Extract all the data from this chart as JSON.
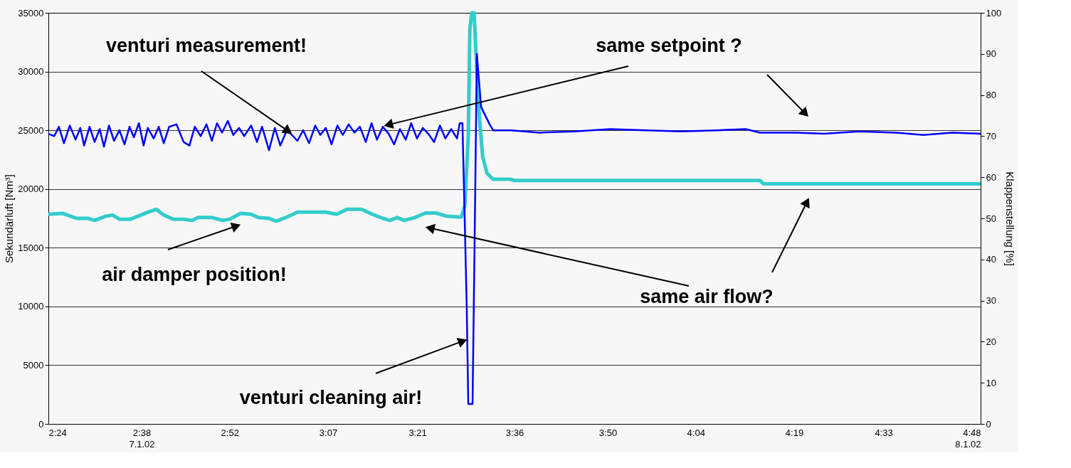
{
  "chart_data": {
    "type": "line",
    "ylabel": "Sekundärluft [Nm³]",
    "y2label": "Klappenstellung  [%]",
    "xlim": [
      2.4,
      4.8
    ],
    "xticks": [
      {
        "value": 2.4,
        "label": "2:24"
      },
      {
        "value": 2.64,
        "label": "2:38\n7.1.02"
      },
      {
        "value": 2.8667,
        "label": "2:52"
      },
      {
        "value": 3.12,
        "label": "3:07"
      },
      {
        "value": 3.35,
        "label": "3:21"
      },
      {
        "value": 3.6,
        "label": "3:36"
      },
      {
        "value": 3.84,
        "label": "3:50"
      },
      {
        "value": 4.0667,
        "label": "4:04"
      },
      {
        "value": 4.32,
        "label": "4:19"
      },
      {
        "value": 4.55,
        "label": "4:33"
      },
      {
        "value": 4.8,
        "label": "4:48\n8.1.02"
      }
    ],
    "ylim": [
      0,
      35000
    ],
    "yticks": [
      0,
      5000,
      10000,
      15000,
      20000,
      25000,
      30000,
      35000
    ],
    "y2lim": [
      0,
      100
    ],
    "y2ticks": [
      0,
      10,
      20,
      30,
      40,
      50,
      60,
      70,
      80,
      90,
      100
    ],
    "grid": "y",
    "marker": "none",
    "line_style": "solid",
    "series": [
      {
        "color": "#0000ff",
        "x": [
          2.4,
          2.415,
          2.427,
          2.44,
          2.455,
          2.47,
          2.482,
          2.492,
          2.506,
          2.519,
          2.532,
          2.543,
          2.556,
          2.569,
          2.583,
          2.596,
          2.609,
          2.62,
          2.633,
          2.645,
          2.656,
          2.671,
          2.684,
          2.697,
          2.711,
          2.73,
          2.748,
          2.763,
          2.777,
          2.792,
          2.807,
          2.821,
          2.834,
          2.847,
          2.862,
          2.876,
          2.891,
          2.904,
          2.922,
          2.937,
          2.95,
          2.968,
          2.983,
          2.997,
          3.014,
          3.027,
          3.041,
          3.056,
          3.071,
          3.087,
          3.1,
          3.114,
          3.129,
          3.144,
          3.158,
          3.173,
          3.188,
          3.202,
          3.217,
          3.232,
          3.246,
          3.261,
          3.276,
          3.29,
          3.305,
          3.32,
          3.334,
          3.349,
          3.364,
          3.378,
          3.393,
          3.408,
          3.422,
          3.437,
          3.452,
          3.459,
          3.466,
          3.477,
          3.481,
          3.492,
          3.499,
          3.503,
          3.514,
          3.521,
          3.536,
          3.545,
          3.591,
          3.664,
          3.756,
          3.847,
          3.939,
          4.03,
          4.122,
          4.195,
          4.232,
          4.324,
          4.397,
          4.488,
          4.58,
          4.653,
          4.727,
          4.8
        ],
        "values": [
          24700,
          24500,
          25300,
          23900,
          25400,
          24200,
          25200,
          23700,
          25300,
          24000,
          25100,
          23600,
          25400,
          24100,
          25000,
          23800,
          25300,
          24400,
          25600,
          23700,
          25200,
          24300,
          25300,
          23900,
          25300,
          25500,
          24000,
          23700,
          25300,
          24500,
          25500,
          24100,
          25600,
          24800,
          25800,
          24600,
          25200,
          24500,
          25400,
          24000,
          25300,
          23300,
          25200,
          23700,
          25000,
          24600,
          24100,
          25000,
          23900,
          25400,
          24600,
          25200,
          23800,
          25400,
          24600,
          25500,
          24800,
          25300,
          24000,
          25600,
          24200,
          25300,
          24700,
          23800,
          25100,
          24200,
          25600,
          24300,
          25200,
          24700,
          24000,
          25400,
          24300,
          25100,
          24300,
          25600,
          25600,
          10000,
          1700,
          1700,
          20000,
          31500,
          27000,
          26500,
          25500,
          25000,
          25000,
          24800,
          24900,
          25100,
          25000,
          24900,
          25000,
          25100,
          24800,
          24800,
          24700,
          24900,
          24800,
          24600,
          24800,
          24700
        ]
      },
      {
        "color": "#33cccc",
        "axis": "y2",
        "x": [
          2.4,
          2.437,
          2.473,
          2.501,
          2.519,
          2.547,
          2.565,
          2.583,
          2.611,
          2.638,
          2.656,
          2.678,
          2.697,
          2.721,
          2.748,
          2.77,
          2.785,
          2.821,
          2.849,
          2.867,
          2.895,
          2.922,
          2.94,
          2.968,
          2.986,
          3.014,
          3.041,
          3.078,
          3.114,
          3.142,
          3.169,
          3.206,
          3.234,
          3.261,
          3.279,
          3.298,
          3.316,
          3.343,
          3.371,
          3.398,
          3.426,
          3.463,
          3.472,
          3.481,
          3.485,
          3.49,
          3.496,
          3.503,
          3.51,
          3.518,
          3.529,
          3.545,
          3.591,
          3.6,
          4.232,
          4.241,
          4.8
        ],
        "values": [
          51.0,
          51.2,
          50.0,
          50.0,
          49.5,
          50.5,
          50.8,
          49.8,
          49.8,
          50.8,
          51.5,
          52.2,
          50.8,
          49.8,
          49.8,
          49.5,
          50.2,
          50.2,
          49.5,
          49.8,
          51.2,
          51.0,
          50.2,
          50.0,
          49.3,
          50.3,
          51.5,
          51.5,
          51.5,
          51.0,
          52.2,
          52.2,
          51.0,
          50.0,
          49.5,
          50.2,
          49.5,
          50.2,
          51.3,
          51.3,
          50.5,
          50.3,
          53,
          70,
          96,
          100,
          100,
          86,
          74,
          65,
          61,
          59.5,
          59.5,
          59.2,
          59.2,
          58.4,
          58.4
        ]
      }
    ],
    "annotations": [
      {
        "text": "venturi measurement!",
        "x": 3.014,
        "y": 25000
      },
      {
        "text": "same setpoint ?",
        "x": 3.279,
        "y": 25500
      },
      {
        "text": "air damper position!",
        "x": 2.88,
        "y": 16800
      },
      {
        "text": "same air flow?",
        "x": 3.386,
        "y": 16650
      },
      {
        "text": "venturi cleaning air!",
        "x": 3.463,
        "y": 7000
      }
    ]
  }
}
